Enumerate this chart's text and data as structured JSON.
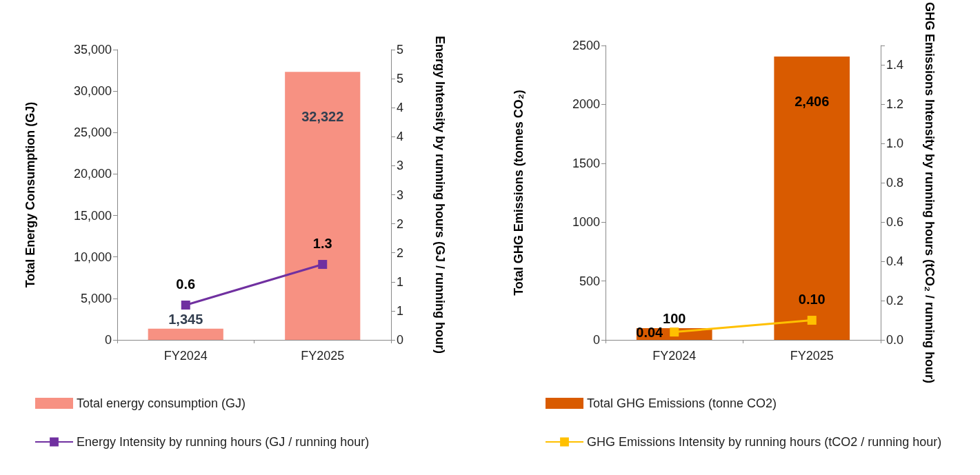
{
  "chart_data": [
    {
      "type": "bar",
      "categories": [
        "FY2024",
        "FY2025"
      ],
      "ylabel": "Total Energy Consumption (GJ)",
      "y2label": "Energy Intensity by running hours (GJ / running hour)",
      "ylim": [
        0,
        35000
      ],
      "yticks": [
        0,
        {
          "value": 5000,
          "label": "5,000"
        },
        {
          "value": 10000,
          "label": "10,000"
        },
        {
          "value": 15000,
          "label": "15,000"
        },
        {
          "value": 20000,
          "label": "20,000"
        },
        {
          "value": 25000,
          "label": "25,000"
        },
        {
          "value": 30000,
          "label": "30,000"
        },
        {
          "value": 35000,
          "label": "35,000"
        }
      ],
      "y2lim": [
        0,
        5
      ],
      "y2ticks": [
        0,
        {
          "value": 0.5,
          "label": "1"
        },
        1,
        {
          "value": 1.5,
          "label": "2"
        },
        2,
        {
          "value": 2.5,
          "label": "3"
        },
        3,
        {
          "value": 3.5,
          "label": "4"
        },
        4,
        {
          "value": 4.5,
          "label": "5"
        },
        5
      ],
      "series": [
        {
          "name": "Total energy consumption (GJ)",
          "color": "#f79182",
          "values": [
            1345,
            32322
          ],
          "value_labels": [
            "1,345",
            "32,322"
          ]
        },
        {
          "name": "Energy Intensity by running hours (GJ / running hour)",
          "type": "line",
          "axis": "y2",
          "color": "#7030a0",
          "values": [
            0.6,
            1.3
          ],
          "value_labels": [
            "0.6",
            "1.3"
          ]
        }
      ],
      "legend": "bottom",
      "marker": "square",
      "grid": false
    },
    {
      "type": "bar",
      "categories": [
        "FY2024",
        "FY2025"
      ],
      "ylabel": "Total GHG Emissions (tonnes CO₂)",
      "y2label": "GHG Emissions Intensity by running hours (tCO₂ / running hour)",
      "ylim": [
        0,
        2500
      ],
      "yticks": [
        0,
        500,
        1000,
        1500,
        2000,
        2500
      ],
      "y2lim": [
        0,
        1.5
      ],
      "y2ticks": [
        {
          "value": 0,
          "label": "0.0"
        },
        {
          "value": 0.2,
          "label": "0.2"
        },
        {
          "value": 0.4,
          "label": "0.4"
        },
        {
          "value": 0.6,
          "label": "0.6"
        },
        {
          "value": 0.8,
          "label": "0.8"
        },
        {
          "value": 1,
          "label": "1.0"
        },
        {
          "value": 1.2,
          "label": "1.2"
        },
        {
          "value": 1.4,
          "label": "1.4"
        },
        {
          "value": 1.5,
          "label": null
        }
      ],
      "series": [
        {
          "name": "Total GHG Emissions (tonne CO2)",
          "color": "#d95b00",
          "values": [
            100,
            2406
          ],
          "value_labels": [
            "100",
            "2,406"
          ]
        },
        {
          "name": "GHG Emissions Intensity by running hours (tCO2 / running hour)",
          "type": "line",
          "axis": "y2",
          "color": "#ffc000",
          "values": [
            0.04,
            0.1
          ],
          "value_labels": [
            "0.04",
            "0.10"
          ]
        }
      ],
      "legend": "bottom",
      "marker": "square",
      "grid": false
    }
  ]
}
